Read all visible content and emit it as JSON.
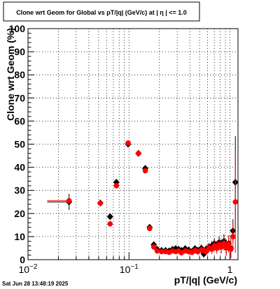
{
  "stamp": "Sat Jun 28 13:48:19 2025",
  "chart_data": {
    "type": "scatter",
    "title": "Clone wrt Geom for Global vs pT/|q| (GeV/c) at |  η  | <= 1.0",
    "xlabel": "pT/|q| (GeV/c)",
    "ylabel": "Clone wrt Geom (%)",
    "xscale": "log",
    "xlim": [
      0.01,
      1.2
    ],
    "ylim": [
      0,
      100
    ],
    "grid": true,
    "xticks": [
      {
        "value": 0.01,
        "base": "10",
        "exp": "−2"
      },
      {
        "value": 0.1,
        "base": "10",
        "exp": "−1"
      },
      {
        "value": 1,
        "base": "1",
        "exp": ""
      }
    ],
    "yticks": [
      "0",
      "10",
      "20",
      "30",
      "40",
      "50",
      "60",
      "70",
      "80",
      "90",
      "100"
    ],
    "series": [
      {
        "color": "#000000",
        "marker": "diamond",
        "points": [
          {
            "x": 0.0255,
            "y": 25.0,
            "xerr": [
              0.0155,
              0.0245
            ],
            "yerr": 3.5
          },
          {
            "x": 0.052,
            "y": 24.5,
            "yerr": 1.3
          },
          {
            "x": 0.065,
            "y": 18.6,
            "yerr": 1.0
          },
          {
            "x": 0.075,
            "y": 33.5,
            "yerr": 1.0
          },
          {
            "x": 0.098,
            "y": 50.0,
            "yerr": 1.0
          },
          {
            "x": 0.124,
            "y": 46.0,
            "yerr": 1.0
          },
          {
            "x": 0.145,
            "y": 39.5,
            "yerr": 1.0
          },
          {
            "x": 0.16,
            "y": 14.0,
            "yerr": 1.0
          },
          {
            "x": 0.176,
            "y": 6.5,
            "yerr": 1.0
          },
          {
            "x": 0.19,
            "y": 4.5,
            "yerr": 1.0
          },
          {
            "x": 0.21,
            "y": 4.0,
            "yerr": 1.0
          },
          {
            "x": 0.23,
            "y": 4.0,
            "yerr": 1.0
          },
          {
            "x": 0.25,
            "y": 3.8,
            "yerr": 1.0
          },
          {
            "x": 0.27,
            "y": 4.5,
            "yerr": 1.0
          },
          {
            "x": 0.29,
            "y": 4.8,
            "yerr": 1.0
          },
          {
            "x": 0.31,
            "y": 4.5,
            "yerr": 1.2
          },
          {
            "x": 0.33,
            "y": 4.0,
            "yerr": 1.2
          },
          {
            "x": 0.36,
            "y": 4.8,
            "yerr": 1.2
          },
          {
            "x": 0.39,
            "y": 4.2,
            "yerr": 1.3
          },
          {
            "x": 0.42,
            "y": 3.5,
            "yerr": 1.3
          },
          {
            "x": 0.45,
            "y": 4.8,
            "yerr": 1.4
          },
          {
            "x": 0.48,
            "y": 4.0,
            "yerr": 1.5
          },
          {
            "x": 0.52,
            "y": 5.0,
            "yerr": 1.5
          },
          {
            "x": 0.55,
            "y": 2.5,
            "yerr": 1.6
          },
          {
            "x": 0.58,
            "y": 4.5,
            "yerr": 1.7
          },
          {
            "x": 0.62,
            "y": 5.5,
            "yerr": 1.8
          },
          {
            "x": 0.66,
            "y": 6.0,
            "yerr": 2.0
          },
          {
            "x": 0.7,
            "y": 7.0,
            "yerr": 2.2
          },
          {
            "x": 0.74,
            "y": 5.5,
            "yerr": 2.4
          },
          {
            "x": 0.78,
            "y": 7.5,
            "yerr": 2.6
          },
          {
            "x": 0.82,
            "y": 6.0,
            "yerr": 2.8
          },
          {
            "x": 0.87,
            "y": 8.0,
            "yerr": 3.0
          },
          {
            "x": 0.92,
            "y": 5.5,
            "yerr": 3.2
          },
          {
            "x": 0.97,
            "y": 7.0,
            "yerr": 3.5
          },
          {
            "x": 1.02,
            "y": 5.0,
            "yerr": 4.0
          },
          {
            "x": 1.07,
            "y": 12.5,
            "yerr": 5.0
          },
          {
            "x": 1.13,
            "y": 33.5,
            "yerr": 20.0
          }
        ]
      },
      {
        "color": "#ff0000",
        "marker": "circle",
        "points": [
          {
            "x": 0.0255,
            "y": 25.5,
            "xerr": [
              0.0155,
              0.0245
            ],
            "yerr": 1.0
          },
          {
            "x": 0.052,
            "y": 24.5,
            "yerr": 1.0
          },
          {
            "x": 0.065,
            "y": 15.5,
            "yerr": 1.0
          },
          {
            "x": 0.075,
            "y": 32.0,
            "yerr": 1.0
          },
          {
            "x": 0.098,
            "y": 50.5,
            "yerr": 1.0
          },
          {
            "x": 0.124,
            "y": 46.0,
            "yerr": 1.0
          },
          {
            "x": 0.145,
            "y": 38.5,
            "yerr": 1.0
          },
          {
            "x": 0.16,
            "y": 13.5,
            "yerr": 1.0
          },
          {
            "x": 0.176,
            "y": 5.5,
            "yerr": 1.0
          },
          {
            "x": 0.19,
            "y": 3.8,
            "yerr": 1.0
          },
          {
            "x": 0.21,
            "y": 3.5,
            "yerr": 1.0
          },
          {
            "x": 0.23,
            "y": 3.5,
            "yerr": 1.0
          },
          {
            "x": 0.25,
            "y": 3.2,
            "yerr": 1.0
          },
          {
            "x": 0.27,
            "y": 3.8,
            "yerr": 1.0
          },
          {
            "x": 0.29,
            "y": 3.5,
            "yerr": 1.0
          },
          {
            "x": 0.31,
            "y": 3.8,
            "yerr": 1.2
          },
          {
            "x": 0.33,
            "y": 3.0,
            "yerr": 1.2
          },
          {
            "x": 0.36,
            "y": 3.8,
            "yerr": 1.2
          },
          {
            "x": 0.39,
            "y": 3.5,
            "yerr": 1.3
          },
          {
            "x": 0.42,
            "y": 3.2,
            "yerr": 1.3
          },
          {
            "x": 0.45,
            "y": 4.0,
            "yerr": 1.4
          },
          {
            "x": 0.48,
            "y": 3.5,
            "yerr": 1.5
          },
          {
            "x": 0.52,
            "y": 4.2,
            "yerr": 1.5
          },
          {
            "x": 0.55,
            "y": 4.0,
            "yerr": 1.6
          },
          {
            "x": 0.58,
            "y": 3.5,
            "yerr": 1.7
          },
          {
            "x": 0.62,
            "y": 5.0,
            "yerr": 1.8
          },
          {
            "x": 0.66,
            "y": 4.5,
            "yerr": 2.0
          },
          {
            "x": 0.7,
            "y": 6.0,
            "yerr": 2.2
          },
          {
            "x": 0.74,
            "y": 5.0,
            "yerr": 2.4
          },
          {
            "x": 0.78,
            "y": 6.5,
            "yerr": 2.6
          },
          {
            "x": 0.82,
            "y": 5.5,
            "yerr": 2.8
          },
          {
            "x": 0.87,
            "y": 7.0,
            "yerr": 3.0
          },
          {
            "x": 0.92,
            "y": 5.0,
            "yerr": 3.2
          },
          {
            "x": 0.97,
            "y": 6.5,
            "yerr": 3.5
          },
          {
            "x": 1.02,
            "y": 4.5,
            "yerr": 4.0
          },
          {
            "x": 1.07,
            "y": 10.0,
            "yerr": 5.0
          },
          {
            "x": 1.13,
            "y": 25.0,
            "yerr": 22.0
          }
        ]
      }
    ]
  }
}
